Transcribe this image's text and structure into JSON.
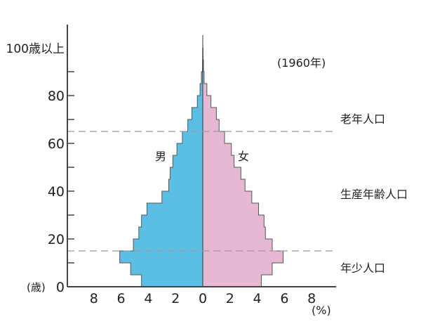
{
  "chart_data": {
    "type": "bar",
    "subtype": "population-pyramid",
    "title": "(1960年)",
    "age_groups": [
      "0-4",
      "5-9",
      "10-14",
      "15-19",
      "20-24",
      "25-29",
      "30-34",
      "35-39",
      "40-44",
      "45-49",
      "50-54",
      "55-59",
      "60-64",
      "65-69",
      "70-74",
      "75-79",
      "80-84",
      "85-89",
      "90-94",
      "95-99"
    ],
    "series": [
      {
        "name": "男",
        "side": "left",
        "color": "#5bbfe5",
        "values": [
          4.5,
          5.3,
          6.1,
          5.1,
          4.7,
          4.5,
          4.1,
          3.0,
          2.5,
          2.4,
          2.2,
          1.9,
          1.5,
          1.1,
          0.8,
          0.4,
          0.2,
          0.1,
          0.02,
          0.01
        ]
      },
      {
        "name": "女",
        "side": "right",
        "color": "#e6b8d4",
        "values": [
          4.3,
          5.1,
          5.9,
          5.1,
          4.6,
          4.5,
          4.1,
          3.6,
          3.1,
          2.8,
          2.3,
          2.1,
          1.6,
          1.2,
          1.0,
          0.6,
          0.3,
          0.1,
          0.05,
          0.02
        ]
      }
    ],
    "xlabel": "(%)",
    "ylabel": "(歳)",
    "xlim": [
      -10,
      10
    ],
    "ylim": [
      0,
      110
    ],
    "x_ticks": [
      "8",
      "6",
      "4",
      "2",
      "0",
      "2",
      "4",
      "6",
      "8"
    ],
    "x_tick_values": [
      -8,
      -6,
      -4,
      -2,
      0,
      2,
      4,
      6,
      8
    ],
    "y_ticks": [
      "0",
      "20",
      "40",
      "60",
      "80",
      "100歳以上"
    ],
    "y_tick_values": [
      0,
      20,
      40,
      60,
      80,
      100
    ],
    "reference_lines": [
      15,
      65
    ],
    "regions": [
      "老年人口",
      "生産年齢人口",
      "年少人口"
    ],
    "grid": false
  }
}
